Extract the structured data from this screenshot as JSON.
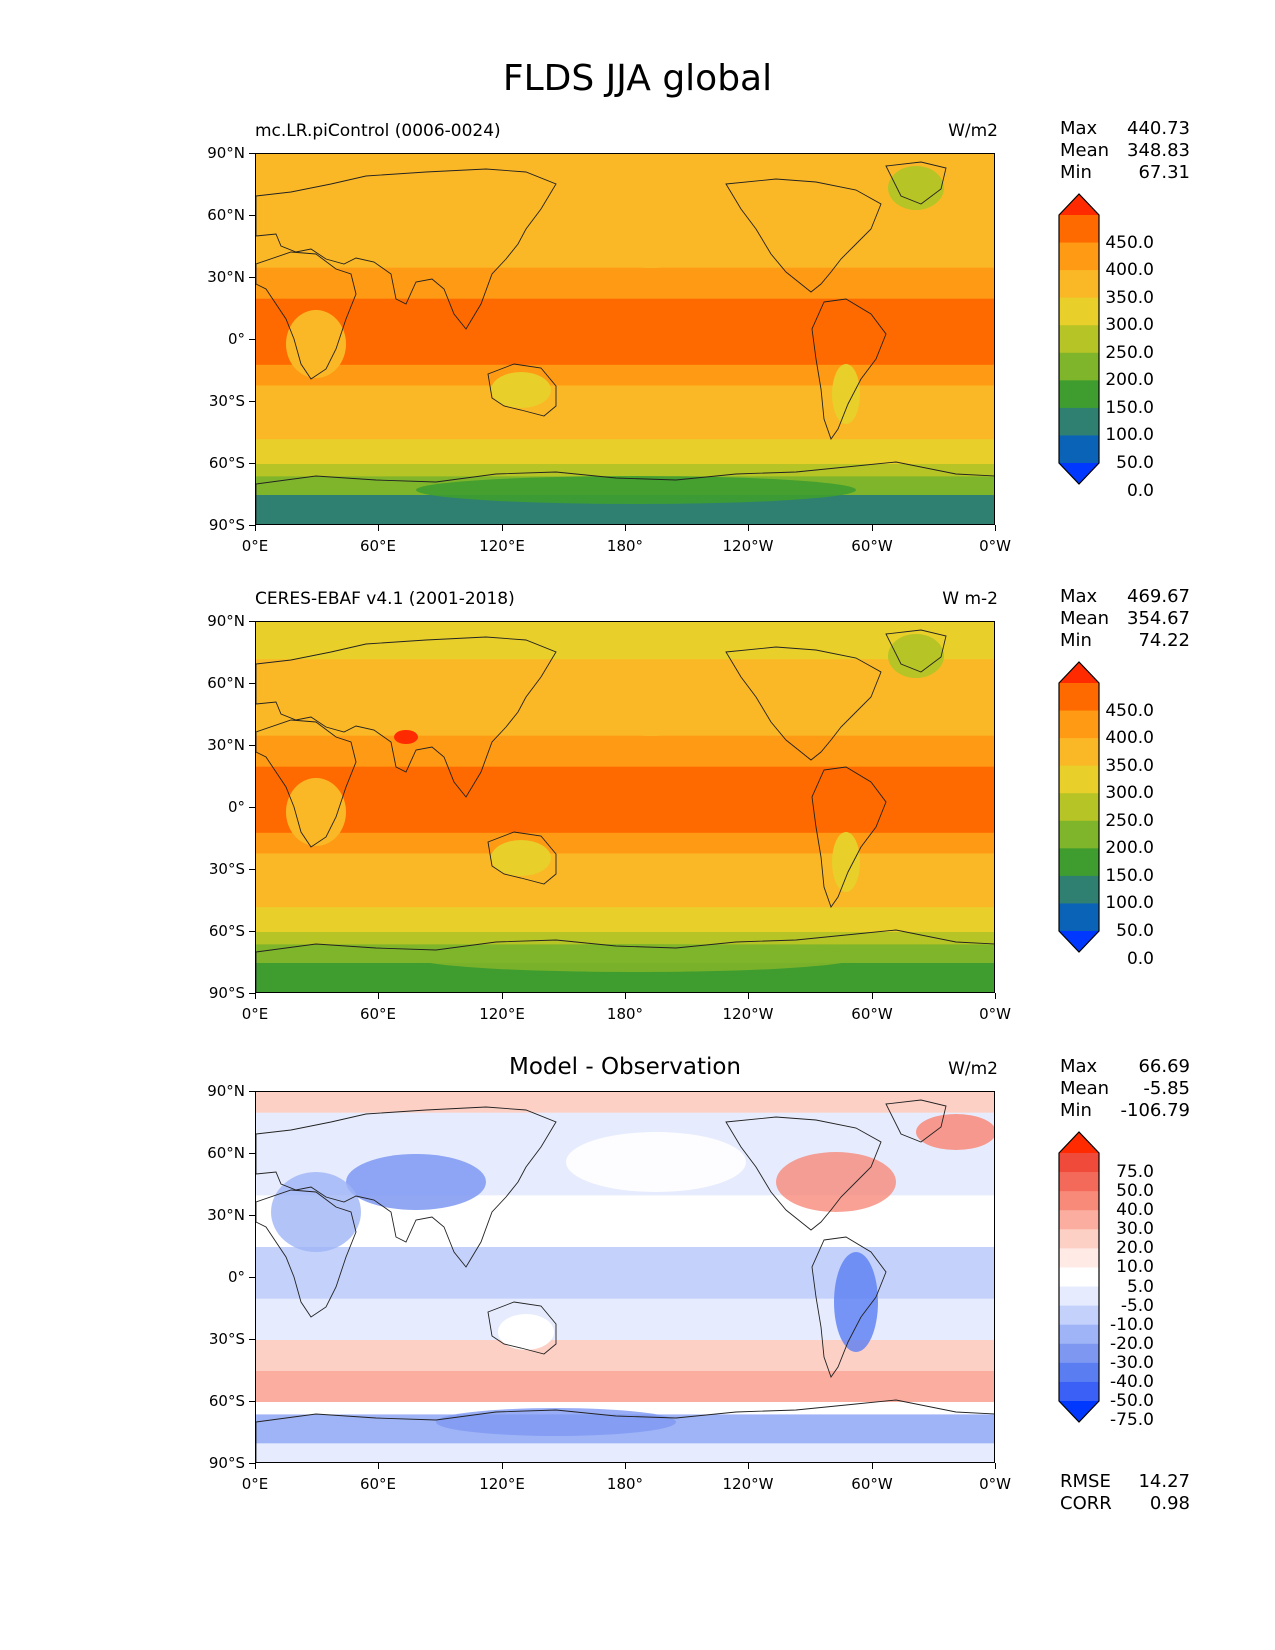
{
  "figure": {
    "title": "FLDS JJA global"
  },
  "axes": {
    "lat_ticks": [
      "90°N",
      "60°N",
      "30°N",
      "0°",
      "30°S",
      "60°S",
      "90°S"
    ],
    "lon_ticks": [
      "0°E",
      "60°E",
      "120°E",
      "180°",
      "120°W",
      "60°W",
      "0°W"
    ]
  },
  "panels": [
    {
      "name": "model",
      "left_label": "mc.LR.piControl (0006-0024)",
      "center_label": "",
      "units": "W/m2",
      "stats": {
        "max_label": "Max",
        "max": "440.73",
        "mean_label": "Mean",
        "mean": "348.83",
        "min_label": "Min",
        "min": "67.31"
      },
      "colorbar": {
        "levels": [
          "450.0",
          "400.0",
          "350.0",
          "300.0",
          "250.0",
          "200.0",
          "150.0",
          "100.0",
          "50.0",
          "0.0"
        ],
        "colors": [
          "#ff2a00",
          "#ff6a00",
          "#ff9a14",
          "#fbb826",
          "#e8cf2a",
          "#b7c426",
          "#7fb52a",
          "#3f9d30",
          "#2f8070",
          "#0b63b8",
          "#0038ff"
        ]
      }
    },
    {
      "name": "observation",
      "left_label": "CERES-EBAF v4.1 (2001-2018)",
      "center_label": "",
      "units": "W m-2",
      "stats": {
        "max_label": "Max",
        "max": "469.67",
        "mean_label": "Mean",
        "mean": "354.67",
        "min_label": "Min",
        "min": "74.22"
      },
      "colorbar": {
        "levels": [
          "450.0",
          "400.0",
          "350.0",
          "300.0",
          "250.0",
          "200.0",
          "150.0",
          "100.0",
          "50.0",
          "0.0"
        ],
        "colors": [
          "#ff2a00",
          "#ff6a00",
          "#ff9a14",
          "#fbb826",
          "#e8cf2a",
          "#b7c426",
          "#7fb52a",
          "#3f9d30",
          "#2f8070",
          "#0b63b8",
          "#0038ff"
        ]
      }
    },
    {
      "name": "difference",
      "left_label": "",
      "center_label": "Model - Observation",
      "units": "W/m2",
      "stats": {
        "max_label": "Max",
        "max": "66.69",
        "mean_label": "Mean",
        "mean": "-5.85",
        "min_label": "Min",
        "min": "-106.79"
      },
      "bottom_stats": {
        "rmse_label": "RMSE",
        "rmse": "14.27",
        "corr_label": "CORR",
        "corr": "0.98"
      },
      "colorbar": {
        "levels": [
          "75.0",
          "50.0",
          "40.0",
          "30.0",
          "20.0",
          "10.0",
          "5.0",
          "-5.0",
          "-10.0",
          "-20.0",
          "-30.0",
          "-40.0",
          "-50.0",
          "-75.0"
        ],
        "colors": [
          "#ff2a00",
          "#ef4a3a",
          "#f46a5a",
          "#f88a7a",
          "#fbaea0",
          "#fdd0c6",
          "#ffeae6",
          "#ffffff",
          "#e6ecfd",
          "#c4d2fb",
          "#9fb4f6",
          "#7e98f2",
          "#5a7ef2",
          "#3a60f6",
          "#0038ff"
        ]
      }
    }
  ]
}
